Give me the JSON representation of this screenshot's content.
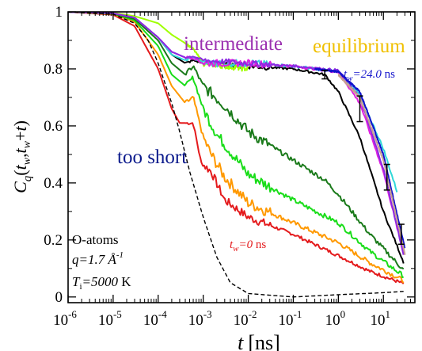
{
  "chart_data": {
    "type": "line",
    "x_scale": "log",
    "xlim": [
      1e-06,
      50
    ],
    "ylim": [
      -0.02,
      1.0
    ],
    "x_tick_labels": [
      {
        "exp": "-6",
        "value": 1e-06
      },
      {
        "exp": "-5",
        "value": 1e-05
      },
      {
        "exp": "-4",
        "value": 0.0001
      },
      {
        "exp": "-3",
        "value": 0.001
      },
      {
        "exp": "-2",
        "value": 0.01
      },
      {
        "exp": "-1",
        "value": 0.1
      },
      {
        "exp": "0",
        "value": 1
      },
      {
        "exp": "1",
        "value": 10
      }
    ],
    "y_tick_labels": [
      {
        "label": "0",
        "value": 0
      },
      {
        "label": "0.2",
        "value": 0.2
      },
      {
        "label": "0.4",
        "value": 0.4
      },
      {
        "label": "0.6",
        "value": 0.6
      },
      {
        "label": "0.8",
        "value": 0.8
      },
      {
        "label": "1",
        "value": 1.0
      }
    ],
    "xlabel": {
      "main": "t",
      "unit": "[ns]"
    },
    "ylabel": {
      "C": "C",
      "q": "q",
      "open": "(",
      "tw1": "t",
      "w1": "w",
      "comma": ",",
      "tw2": "t",
      "w2": "w",
      "plus": "+",
      "t": "t",
      "close": ")"
    },
    "annotations": {
      "intermediate": "intermediate",
      "equilibrium": "equilibrium",
      "too_short": "too short",
      "tw_max": {
        "t": "t",
        "sub": "w",
        "value": "=24.0",
        "unit": " ns"
      },
      "tw_min": {
        "t": "t",
        "sub": "w",
        "value": "=0",
        "unit": " ns"
      },
      "info_atoms": "O-atoms",
      "info_q": "q=1.7 Å",
      "info_q_exp": "-1",
      "info_T_sym": "T",
      "info_T_sub": "i",
      "info_T_val": "=5000",
      "info_T_unit": " K"
    },
    "colors": {
      "red": "#e41a1c",
      "orange": "#ff9900",
      "green": "#19dd19",
      "darkgreen": "#1a7a1a",
      "lightgreen": "#a0ff00",
      "black": "#000000",
      "cyan": "#30d8d8",
      "magenta": "#e020e0",
      "purple": "#8a2be2",
      "blue": "#1010cc",
      "tan": "#c9a090",
      "intermediate_text": "#9b30b0",
      "equilibrium_text": "#f0c000",
      "too_short_text": "#0b1a8c",
      "tw_max_text": "#1414cc",
      "tw_min_text": "#e41a1c"
    },
    "series": [
      {
        "color": "red",
        "noise": 0.006,
        "points": [
          [
            1e-06,
            1.0
          ],
          [
            1e-05,
            0.99
          ],
          [
            3e-05,
            0.95
          ],
          [
            0.0001,
            0.8
          ],
          [
            0.0002,
            0.66
          ],
          [
            0.0003,
            0.61
          ],
          [
            0.0006,
            0.61
          ],
          [
            0.0009,
            0.47
          ],
          [
            0.0015,
            0.44
          ],
          [
            0.003,
            0.34
          ],
          [
            0.01,
            0.28
          ],
          [
            0.1,
            0.22
          ],
          [
            1,
            0.145
          ],
          [
            5,
            0.09
          ],
          [
            30,
            0.045
          ]
        ]
      },
      {
        "color": "orange",
        "noise": 0.008,
        "points": [
          [
            1e-06,
            1.0
          ],
          [
            1e-05,
            0.992
          ],
          [
            3e-05,
            0.965
          ],
          [
            0.0001,
            0.85
          ],
          [
            0.0002,
            0.74
          ],
          [
            0.0004,
            0.68
          ],
          [
            0.0006,
            0.7
          ],
          [
            0.001,
            0.56
          ],
          [
            0.0015,
            0.5
          ],
          [
            0.003,
            0.42
          ],
          [
            0.01,
            0.33
          ],
          [
            0.1,
            0.26
          ],
          [
            1,
            0.19
          ],
          [
            5,
            0.12
          ],
          [
            30,
            0.055
          ]
        ]
      },
      {
        "color": "green",
        "noise": 0.008,
        "points": [
          [
            1e-06,
            1.0
          ],
          [
            1e-05,
            0.993
          ],
          [
            3e-05,
            0.97
          ],
          [
            0.0001,
            0.88
          ],
          [
            0.0002,
            0.78
          ],
          [
            0.0004,
            0.74
          ],
          [
            0.0006,
            0.77
          ],
          [
            0.001,
            0.66
          ],
          [
            0.002,
            0.57
          ],
          [
            0.01,
            0.43
          ],
          [
            0.1,
            0.34
          ],
          [
            1,
            0.26
          ],
          [
            5,
            0.16
          ],
          [
            30,
            0.07
          ]
        ]
      },
      {
        "color": "darkgreen",
        "noise": 0.008,
        "points": [
          [
            1e-06,
            1.0
          ],
          [
            1e-05,
            0.994
          ],
          [
            3e-05,
            0.975
          ],
          [
            0.0001,
            0.9
          ],
          [
            0.0002,
            0.82
          ],
          [
            0.0004,
            0.78
          ],
          [
            0.0006,
            0.81
          ],
          [
            0.001,
            0.74
          ],
          [
            0.003,
            0.67
          ],
          [
            0.01,
            0.58
          ],
          [
            0.1,
            0.48
          ],
          [
            0.5,
            0.41
          ],
          [
            1,
            0.36
          ],
          [
            5,
            0.22
          ],
          [
            30,
            0.09
          ]
        ]
      },
      {
        "color": "black",
        "noise": 0.004,
        "points": [
          [
            1e-06,
            1.0
          ],
          [
            1e-05,
            0.995
          ],
          [
            3e-05,
            0.98
          ],
          [
            0.0001,
            0.91
          ],
          [
            0.0002,
            0.85
          ],
          [
            0.0004,
            0.82
          ],
          [
            0.0006,
            0.83
          ],
          [
            0.001,
            0.82
          ],
          [
            0.01,
            0.81
          ],
          [
            0.1,
            0.8
          ],
          [
            0.5,
            0.78
          ],
          [
            1,
            0.72
          ],
          [
            3,
            0.56
          ],
          [
            10,
            0.3
          ],
          [
            30,
            0.11
          ]
        ]
      },
      {
        "color": "lightgreen",
        "noise": 0.004,
        "points": [
          [
            1e-06,
            1.0
          ],
          [
            1e-05,
            0.997
          ],
          [
            3e-05,
            0.985
          ],
          [
            0.0001,
            0.96
          ],
          [
            0.0002,
            0.92
          ],
          [
            0.0004,
            0.89
          ],
          [
            0.0006,
            0.87
          ],
          [
            0.001,
            0.82
          ],
          [
            0.003,
            0.81
          ],
          [
            0.01,
            0.8
          ]
        ]
      },
      {
        "color": "cyan",
        "noise": 0.005,
        "points": [
          [
            1e-06,
            1.0
          ],
          [
            1e-05,
            0.995
          ],
          [
            3e-05,
            0.98
          ],
          [
            0.0001,
            0.91
          ],
          [
            0.0002,
            0.85
          ],
          [
            0.0004,
            0.83
          ],
          [
            0.0006,
            0.84
          ],
          [
            0.001,
            0.82
          ],
          [
            0.01,
            0.82
          ],
          [
            0.1,
            0.81
          ],
          [
            1,
            0.79
          ],
          [
            3,
            0.71
          ],
          [
            10,
            0.52
          ],
          [
            20,
            0.37
          ]
        ]
      },
      {
        "color": "magenta",
        "noise": 0.005,
        "points": [
          [
            1e-06,
            1.0
          ],
          [
            1e-05,
            0.995
          ],
          [
            3e-05,
            0.98
          ],
          [
            0.0001,
            0.91
          ],
          [
            0.0002,
            0.86
          ],
          [
            0.0004,
            0.84
          ],
          [
            0.0006,
            0.84
          ],
          [
            0.001,
            0.82
          ],
          [
            0.01,
            0.82
          ],
          [
            0.1,
            0.81
          ],
          [
            1,
            0.79
          ],
          [
            3,
            0.68
          ],
          [
            10,
            0.44
          ],
          [
            30,
            0.13
          ]
        ]
      },
      {
        "color": "purple",
        "noise": 0.004,
        "points": [
          [
            1e-06,
            1.0
          ],
          [
            1e-05,
            0.995
          ],
          [
            3e-05,
            0.98
          ],
          [
            0.0001,
            0.91
          ],
          [
            0.0002,
            0.86
          ],
          [
            0.0004,
            0.84
          ],
          [
            0.0006,
            0.845
          ],
          [
            0.001,
            0.83
          ],
          [
            0.01,
            0.82
          ],
          [
            0.1,
            0.81
          ],
          [
            1,
            0.795
          ],
          [
            3,
            0.7
          ],
          [
            10,
            0.45
          ],
          [
            30,
            0.13
          ]
        ]
      },
      {
        "color": "blue",
        "noise": 0.003,
        "points": [
          [
            0.3,
            0.8
          ],
          [
            1,
            0.79
          ],
          [
            3,
            0.72
          ],
          [
            10,
            0.5
          ],
          [
            30,
            0.17
          ]
        ]
      },
      {
        "color": "tan",
        "noise": 0.003,
        "points": [
          [
            1,
            0.78
          ],
          [
            3,
            0.7
          ],
          [
            10,
            0.48
          ],
          [
            30,
            0.15
          ]
        ]
      },
      {
        "color": "black",
        "dash": true,
        "noise": 0,
        "points": [
          [
            1e-06,
            1.0
          ],
          [
            1e-05,
            0.992
          ],
          [
            3e-05,
            0.96
          ],
          [
            6e-05,
            0.9
          ],
          [
            0.0001,
            0.82
          ],
          [
            0.0002,
            0.68
          ],
          [
            0.0003,
            0.58
          ],
          [
            0.0005,
            0.44
          ],
          [
            0.001,
            0.28
          ],
          [
            0.002,
            0.14
          ],
          [
            0.004,
            0.05
          ],
          [
            0.01,
            0.012
          ],
          [
            0.1,
            0.0
          ],
          [
            1,
            0.008
          ],
          [
            10,
            0.015
          ],
          [
            30,
            0.02
          ]
        ]
      }
    ],
    "error_bars": [
      {
        "x": 0.5,
        "y": 0.78,
        "err": 0.015
      },
      {
        "x": 3,
        "y": 0.66,
        "err": 0.045
      },
      {
        "x": 12,
        "y": 0.42,
        "err": 0.045
      },
      {
        "x": 25,
        "y": 0.22,
        "err": 0.035
      }
    ]
  }
}
